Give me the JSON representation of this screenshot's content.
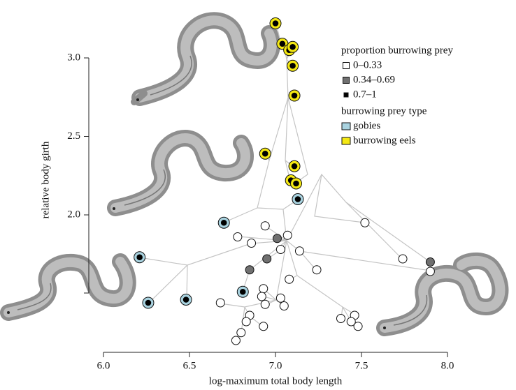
{
  "chart_data": {
    "type": "scatter",
    "x_label": "log-maximum total body length",
    "y_label": "relative body girth",
    "xlim": [
      6.0,
      8.0
    ],
    "ylim": [
      1.15,
      3.25
    ],
    "xticks": [
      {
        "value": 6.0,
        "label": "6.0"
      },
      {
        "value": 6.5,
        "label": "6.5"
      },
      {
        "value": 7.0,
        "label": "7.0"
      },
      {
        "value": 7.5,
        "label": "7.5"
      },
      {
        "value": 8.0,
        "label": "8.0"
      }
    ],
    "yticks": [
      {
        "value": 2.0,
        "label": "2.0"
      },
      {
        "value": 2.5,
        "label": "2.5"
      },
      {
        "value": 3.0,
        "label": "3.0"
      }
    ],
    "legend_fill": {
      "title": "proportion burrowing prey",
      "entries": [
        {
          "name": "0–0.33",
          "color": "#ffffff"
        },
        {
          "name": "0.34–0.69",
          "color": "#707070"
        },
        {
          "name": "0.7–1",
          "color": "#000000"
        }
      ]
    },
    "legend_ring": {
      "title": "burrowing prey type",
      "entries": [
        {
          "name": "gobies",
          "color": "#a9d3e0"
        },
        {
          "name": "burrowing eels",
          "color": "#f4e813"
        }
      ]
    },
    "series": [
      {
        "color": "#000000",
        "ring": "#f4e813",
        "x": [
          7.0,
          7.04,
          7.08,
          7.1,
          7.1,
          7.11,
          6.94,
          7.11,
          7.09,
          7.12
        ],
        "y": [
          3.22,
          3.09,
          3.05,
          3.07,
          2.95,
          2.76,
          2.39,
          2.31,
          2.22,
          2.2
        ]
      },
      {
        "color": "#000000",
        "ring": "#a9d3e0",
        "x": [
          7.13,
          6.7,
          6.21,
          6.26,
          6.48,
          6.81
        ],
        "y": [
          2.1,
          1.95,
          1.73,
          1.44,
          1.46,
          1.51
        ]
      },
      {
        "color": "#707070",
        "x": [
          6.85,
          6.95,
          7.9,
          7.01
        ],
        "y": [
          1.65,
          1.72,
          1.7,
          1.85
        ]
      },
      {
        "color": "#ffffff",
        "x": [
          6.78,
          6.94,
          6.86,
          7.07,
          7.03,
          7.14,
          7.24,
          7.52,
          7.74,
          7.9,
          7.08,
          6.93,
          6.92,
          7.03,
          6.94,
          7.05,
          6.68,
          6.85,
          6.83,
          6.93,
          6.8,
          6.77,
          7.38,
          7.46,
          7.44,
          7.48
        ],
        "y": [
          1.86,
          1.93,
          1.82,
          1.87,
          1.78,
          1.77,
          1.65,
          1.95,
          1.72,
          1.64,
          1.59,
          1.53,
          1.48,
          1.47,
          1.43,
          1.42,
          1.44,
          1.36,
          1.32,
          1.29,
          1.25,
          1.2,
          1.34,
          1.36,
          1.32,
          1.29
        ]
      }
    ]
  }
}
